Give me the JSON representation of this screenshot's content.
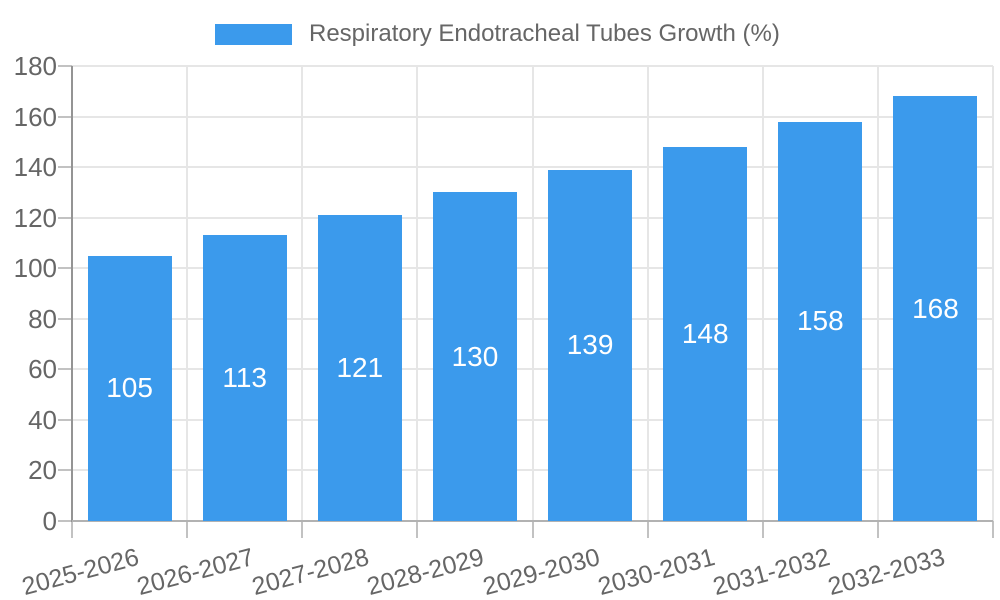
{
  "chart_data": {
    "type": "bar",
    "title": "Respiratory Endotracheal Tubes Growth (%)",
    "legend": {
      "position": "top",
      "label": "Respiratory Endotracheal Tubes Growth (%)"
    },
    "categories": [
      "2025-2026",
      "2026-2027",
      "2027-2028",
      "2028-2029",
      "2029-2030",
      "2030-2031",
      "2031-2032",
      "2032-2033"
    ],
    "series": [
      {
        "name": "Respiratory Endotracheal Tubes Growth (%)",
        "values": [
          105,
          113,
          121,
          130,
          139,
          148,
          158,
          168
        ]
      }
    ],
    "value_labels": [
      105,
      113,
      121,
      130,
      139,
      148,
      158,
      168
    ],
    "xlabel": "",
    "ylabel": "",
    "ylim": [
      0,
      180
    ],
    "ytick_step": 20,
    "ytick_labels": [
      "0",
      "20",
      "40",
      "60",
      "80",
      "100",
      "120",
      "140",
      "160",
      "180"
    ],
    "grid": true,
    "xtick_rotation_deg": -15,
    "colors": {
      "bar": "#3b9aec",
      "value_label": "#ffffff",
      "tick_label": "#666666",
      "legend_label": "#666666",
      "gridline": "#e6e6e6",
      "axis_line": "#949494",
      "background": "#ffffff"
    }
  }
}
